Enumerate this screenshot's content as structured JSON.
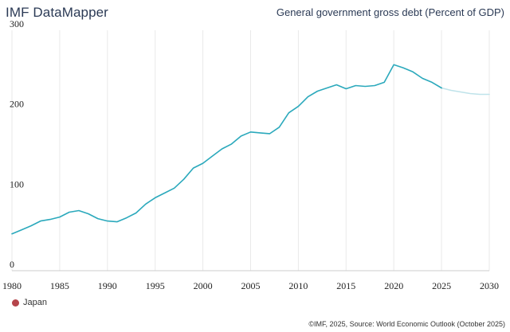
{
  "header": {
    "app_title": "IMF DataMapper",
    "chart_title": "General government gross debt (Percent of GDP)"
  },
  "legend": {
    "label": "Japan"
  },
  "footer": {
    "source": "©IMF, 2025, Source: World Economic Outlook (October 2025)"
  },
  "colors": {
    "actual_line": "#2ba9bc",
    "projection_line": "#bfe3ea",
    "legend_dot": "#b5454b",
    "gridline": "#e9e9e9",
    "baseline": "#cccccc"
  },
  "chart_data": {
    "type": "line",
    "title": "General government gross debt (Percent of GDP)",
    "xlabel": "",
    "ylabel": "",
    "xlim": [
      1980,
      2030
    ],
    "ylim": [
      0,
      300
    ],
    "x_ticks": [
      1980,
      1985,
      1990,
      1995,
      2000,
      2005,
      2010,
      2015,
      2020,
      2025,
      2030
    ],
    "y_ticks": [
      0,
      100,
      200,
      300
    ],
    "grid": "vertical",
    "legend_position": "bottom-left",
    "projection_start": 2025,
    "series": [
      {
        "name": "Japan",
        "x": [
          1980,
          1981,
          1982,
          1983,
          1984,
          1985,
          1986,
          1987,
          1988,
          1989,
          1990,
          1991,
          1992,
          1993,
          1994,
          1995,
          1996,
          1997,
          1998,
          1999,
          2000,
          2001,
          2002,
          2003,
          2004,
          2005,
          2006,
          2007,
          2008,
          2009,
          2010,
          2011,
          2012,
          2013,
          2014,
          2015,
          2016,
          2017,
          2018,
          2019,
          2020,
          2021,
          2022,
          2023,
          2024,
          2025,
          2026,
          2027,
          2028,
          2029,
          2030
        ],
        "values": [
          46,
          51,
          56,
          62,
          64,
          67,
          73,
          75,
          71,
          65,
          62,
          61,
          66,
          72,
          83,
          91,
          97,
          103,
          114,
          128,
          134,
          143,
          152,
          158,
          168,
          173,
          172,
          171,
          179,
          197,
          205,
          217,
          224,
          228,
          232,
          227,
          231,
          230,
          231,
          235,
          257,
          253,
          248,
          240,
          235,
          228,
          225,
          223,
          221,
          220,
          220
        ]
      }
    ]
  }
}
